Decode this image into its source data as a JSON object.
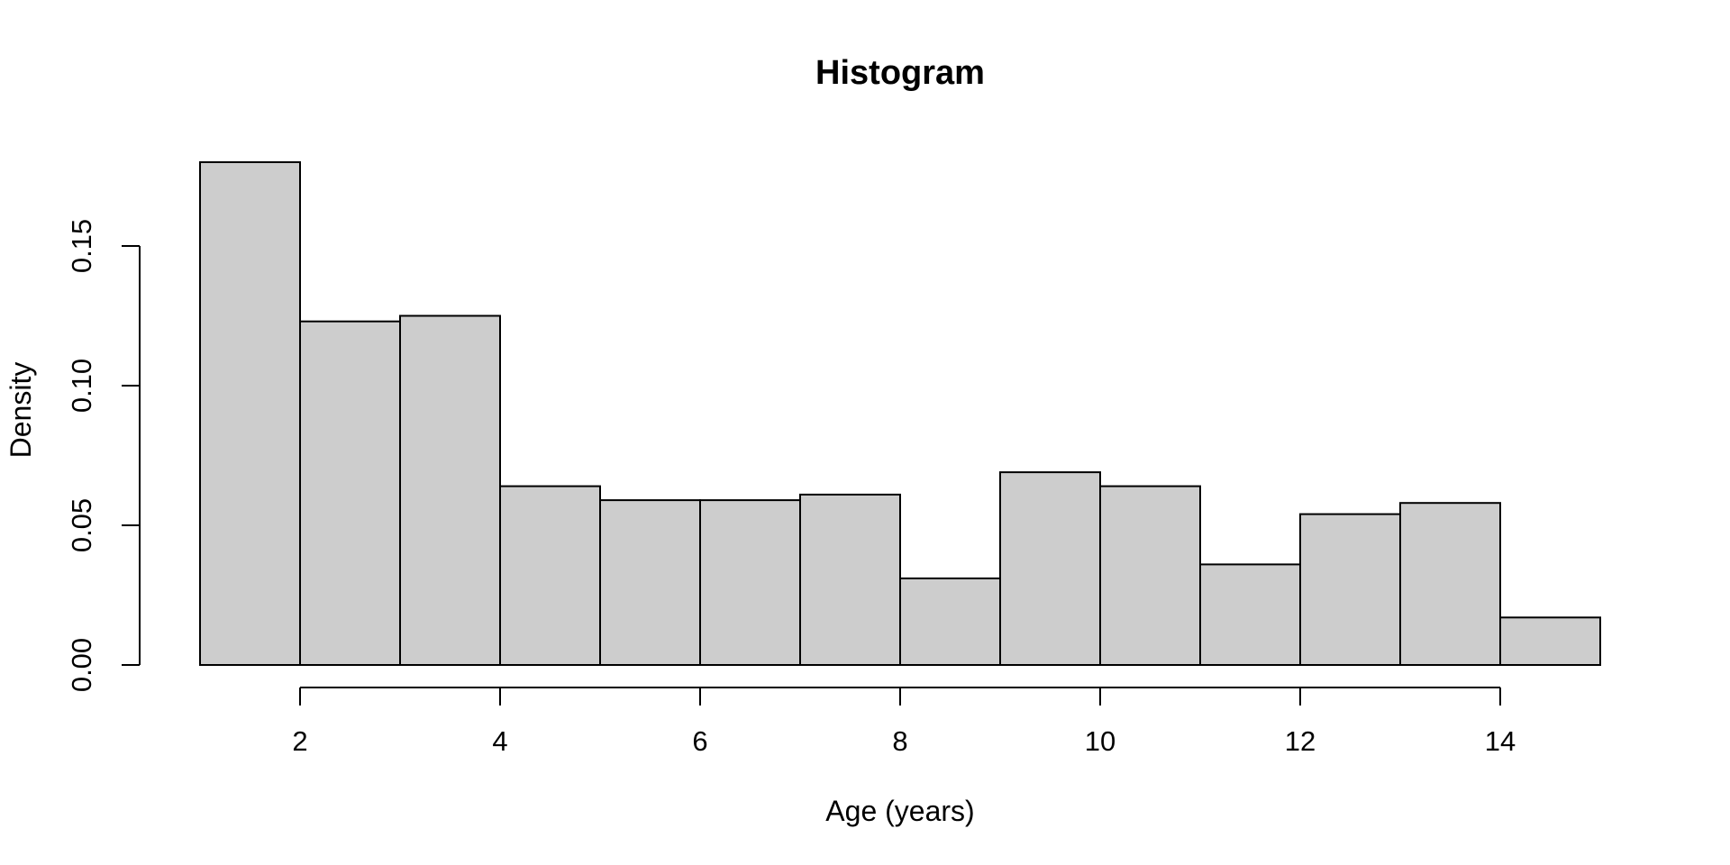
{
  "chart_data": {
    "type": "bar",
    "subtype": "histogram",
    "title": "Histogram",
    "xlabel": "Age (years)",
    "ylabel": "Density",
    "bin_edges": [
      1,
      2,
      3,
      4,
      5,
      6,
      7,
      8,
      9,
      10,
      11,
      12,
      13,
      14,
      15
    ],
    "densities": [
      0.18,
      0.123,
      0.125,
      0.064,
      0.059,
      0.059,
      0.061,
      0.031,
      0.069,
      0.064,
      0.036,
      0.054,
      0.058,
      0.017
    ],
    "x_tick_values": [
      2,
      4,
      6,
      8,
      10,
      12,
      14
    ],
    "x_tick_labels": [
      "2",
      "4",
      "6",
      "8",
      "10",
      "12",
      "14"
    ],
    "y_tick_values": [
      0.0,
      0.05,
      0.1,
      0.15
    ],
    "y_tick_labels": [
      "0.00",
      "0.05",
      "0.10",
      "0.15"
    ],
    "xlim": [
      1,
      15
    ],
    "ylim": [
      0,
      0.185
    ],
    "grid": false,
    "legend": null,
    "bar_fill": "#cdcdcd",
    "bar_stroke": "#000000",
    "axis_color": "#000000",
    "text_color": "#000000"
  }
}
